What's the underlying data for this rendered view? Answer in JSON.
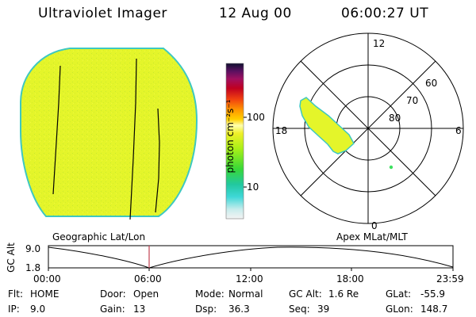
{
  "header": {
    "title": "Ultraviolet Imager",
    "date": "12 Aug 00",
    "time": "06:00:27 UT"
  },
  "colorbar": {
    "unit_label": "photon cm⁻²s⁻¹",
    "tick_100": "100",
    "tick_10": "10"
  },
  "polar_plot": {
    "mlt_labels": [
      "12",
      "18",
      "6",
      "0"
    ],
    "lat_labels": [
      "60",
      "70",
      "80"
    ]
  },
  "panel_labels": {
    "left": "Geographic Lat/Lon",
    "right": "Apex MLat/MLT"
  },
  "altitude_plot": {
    "axis_label": "GC Alt",
    "y_top": "9.0",
    "y_bottom": "1.8",
    "x_ticks": [
      "00:00",
      "06:00",
      "12:00",
      "18:00",
      "23:59"
    ]
  },
  "info": {
    "row1": [
      {
        "label": "Flt:",
        "value": "HOME"
      },
      {
        "label": "Door:",
        "value": "Open"
      },
      {
        "label": "Mode:",
        "value": "Normal"
      },
      {
        "label": "GC Alt:",
        "value": "1.6 Re"
      },
      {
        "label": "GLat:",
        "value": "-55.9"
      }
    ],
    "row2": [
      {
        "label": "IP:",
        "value": "9.0"
      },
      {
        "label": "Gain:",
        "value": "13"
      },
      {
        "label": "Dsp:",
        "value": "36.3"
      },
      {
        "label": "Seq:",
        "value": "39"
      },
      {
        "label": "GLon:",
        "value": "148.7"
      }
    ]
  }
}
